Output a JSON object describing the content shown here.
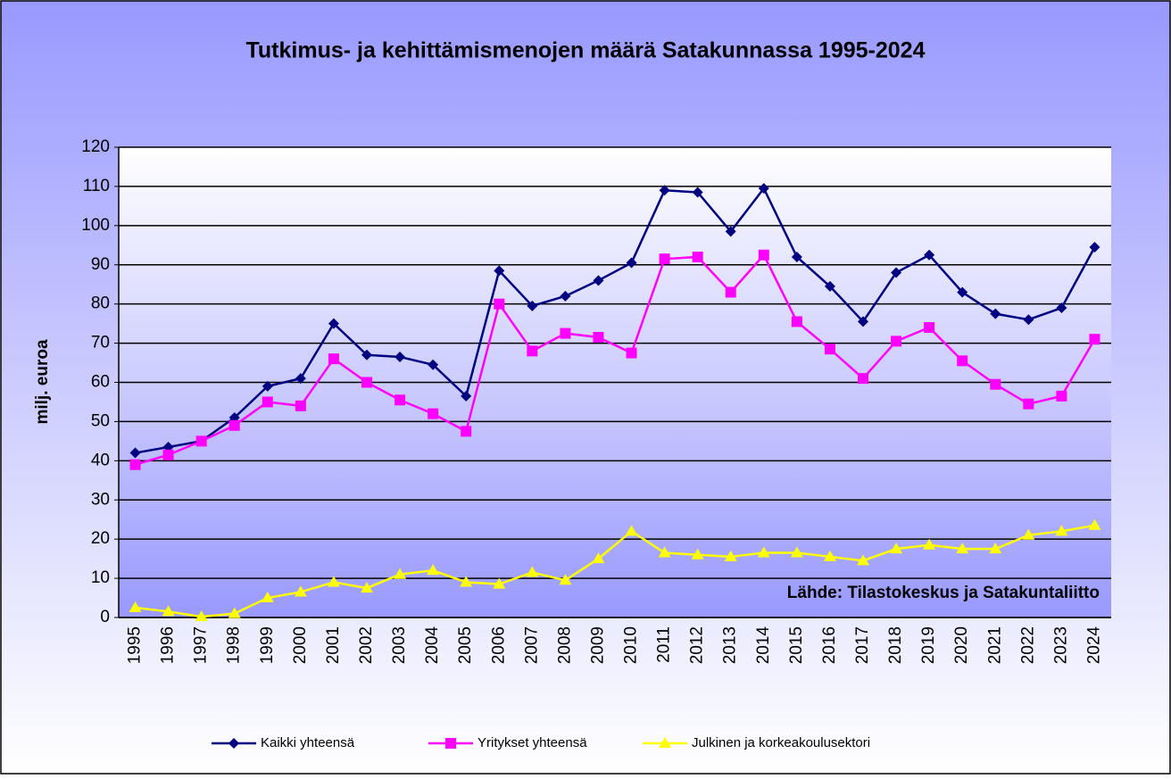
{
  "chart_data": {
    "type": "line",
    "title": "Tutkimus- ja kehittämismenojen määrä Satakunnassa 1995-2024",
    "y_label": "milj. euroa",
    "annotation": "Lähde: Tilastokeskus ja Satakuntaliitto",
    "categories": [
      "1995",
      "1996",
      "1997",
      "1998",
      "1999",
      "2000",
      "2001",
      "2002",
      "2003",
      "2004",
      "2005",
      "2006",
      "2007",
      "2008",
      "2009",
      "2010",
      "2011",
      "2012",
      "2013",
      "2014",
      "2015",
      "2016",
      "2017",
      "2018",
      "2019",
      "2020",
      "2021",
      "2022",
      "2023",
      "2024"
    ],
    "series": [
      {
        "name": "Kaikki yhteensä",
        "color": "#000080",
        "marker": "diamond",
        "values": [
          42,
          43.5,
          45,
          51,
          59,
          61,
          75,
          67,
          66.5,
          64.5,
          56.5,
          88.5,
          79.5,
          82,
          86,
          90.5,
          109,
          108.5,
          98.5,
          109.5,
          92,
          84.5,
          75.5,
          88,
          92.5,
          83,
          77.5,
          76,
          79,
          94.5
        ]
      },
      {
        "name": "Yritykset yhteensä",
        "color": "#ff00ff",
        "marker": "square",
        "values": [
          39,
          41.5,
          45,
          49,
          55,
          54,
          66,
          60,
          55.5,
          52,
          47.5,
          80,
          68,
          72.5,
          71.5,
          67.5,
          91.5,
          92,
          83,
          92.5,
          75.5,
          68.5,
          61,
          70.5,
          74,
          65.5,
          59.5,
          54.5,
          56.5,
          71
        ]
      },
      {
        "name": "Julkinen ja korkeakoulusektori",
        "color": "#ffff00",
        "marker": "triangle",
        "values": [
          2.5,
          1.5,
          0.2,
          1,
          5,
          6.5,
          9,
          7.5,
          11,
          12,
          9,
          8.5,
          11.5,
          9.5,
          15,
          22,
          16.5,
          16,
          15.5,
          16.5,
          16.5,
          15.5,
          14.5,
          17.5,
          18.5,
          17.5,
          17.5,
          21,
          22,
          23.5
        ]
      }
    ],
    "ylim": [
      0,
      120
    ],
    "yticks": [
      0,
      10,
      20,
      30,
      40,
      50,
      60,
      70,
      80,
      90,
      100,
      110,
      120
    ],
    "grid": true,
    "legend": "bottom"
  }
}
